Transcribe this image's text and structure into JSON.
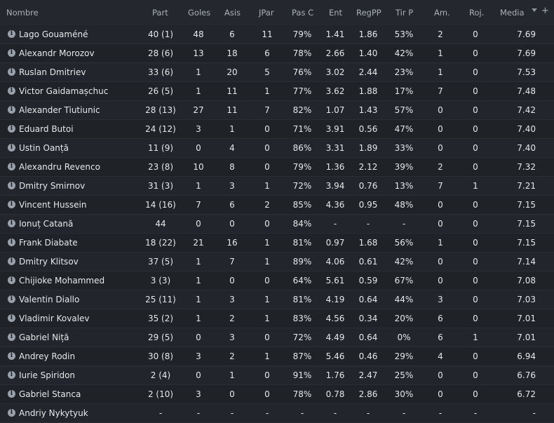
{
  "header": {
    "name": "Nombre",
    "part": "Part",
    "goles": "Goles",
    "asis": "Asis",
    "jpar": "JPar",
    "pasc": "Pas C",
    "ent": "Ent",
    "regpp": "RegPP",
    "tirp": "Tir P",
    "am": "Am.",
    "roj": "Roj.",
    "media": "Media",
    "add": "+"
  },
  "rows": [
    {
      "name": "Lago Gouaméné",
      "part": "40 (1)",
      "goles": "48",
      "asis": "6",
      "jpar": "11",
      "pasc": "79%",
      "ent": "1.41",
      "regpp": "1.86",
      "tirp": "53%",
      "am": "2",
      "roj": "0",
      "media": "7.69"
    },
    {
      "name": "Alexandr Morozov",
      "part": "28 (6)",
      "goles": "13",
      "asis": "18",
      "jpar": "6",
      "pasc": "78%",
      "ent": "2.66",
      "regpp": "1.40",
      "tirp": "42%",
      "am": "1",
      "roj": "0",
      "media": "7.69"
    },
    {
      "name": "Ruslan Dmitriev",
      "part": "33 (6)",
      "goles": "1",
      "asis": "20",
      "jpar": "5",
      "pasc": "76%",
      "ent": "3.02",
      "regpp": "2.44",
      "tirp": "23%",
      "am": "1",
      "roj": "0",
      "media": "7.53"
    },
    {
      "name": "Victor Gaidamașchuc",
      "part": "26 (5)",
      "goles": "1",
      "asis": "11",
      "jpar": "1",
      "pasc": "77%",
      "ent": "3.62",
      "regpp": "1.88",
      "tirp": "17%",
      "am": "7",
      "roj": "0",
      "media": "7.48"
    },
    {
      "name": "Alexander Tiutiunic",
      "part": "28 (13)",
      "goles": "27",
      "asis": "11",
      "jpar": "7",
      "pasc": "82%",
      "ent": "1.07",
      "regpp": "1.43",
      "tirp": "57%",
      "am": "0",
      "roj": "0",
      "media": "7.42"
    },
    {
      "name": "Eduard Butoi",
      "part": "24 (12)",
      "goles": "3",
      "asis": "1",
      "jpar": "0",
      "pasc": "71%",
      "ent": "3.91",
      "regpp": "0.56",
      "tirp": "47%",
      "am": "0",
      "roj": "0",
      "media": "7.40"
    },
    {
      "name": "Ustin Oanță",
      "part": "11 (9)",
      "goles": "0",
      "asis": "4",
      "jpar": "0",
      "pasc": "86%",
      "ent": "3.31",
      "regpp": "1.89",
      "tirp": "33%",
      "am": "0",
      "roj": "0",
      "media": "7.40"
    },
    {
      "name": "Alexandru Revenco",
      "part": "23 (8)",
      "goles": "10",
      "asis": "8",
      "jpar": "0",
      "pasc": "79%",
      "ent": "1.36",
      "regpp": "2.12",
      "tirp": "39%",
      "am": "2",
      "roj": "0",
      "media": "7.32"
    },
    {
      "name": "Dmitry Smirnov",
      "part": "31 (3)",
      "goles": "1",
      "asis": "3",
      "jpar": "1",
      "pasc": "72%",
      "ent": "3.94",
      "regpp": "0.76",
      "tirp": "13%",
      "am": "7",
      "roj": "1",
      "media": "7.21"
    },
    {
      "name": "Vincent Hussein",
      "part": "14 (16)",
      "goles": "7",
      "asis": "6",
      "jpar": "2",
      "pasc": "85%",
      "ent": "4.36",
      "regpp": "0.95",
      "tirp": "48%",
      "am": "0",
      "roj": "0",
      "media": "7.15"
    },
    {
      "name": "Ionuț Catană",
      "part": "44",
      "goles": "0",
      "asis": "0",
      "jpar": "0",
      "pasc": "84%",
      "ent": "-",
      "regpp": "-",
      "tirp": "-",
      "am": "0",
      "roj": "0",
      "media": "7.15"
    },
    {
      "name": "Frank Diabate",
      "part": "18 (22)",
      "goles": "21",
      "asis": "16",
      "jpar": "1",
      "pasc": "81%",
      "ent": "0.97",
      "regpp": "1.68",
      "tirp": "56%",
      "am": "1",
      "roj": "0",
      "media": "7.15"
    },
    {
      "name": "Dmitry Klitsov",
      "part": "37 (5)",
      "goles": "1",
      "asis": "7",
      "jpar": "1",
      "pasc": "89%",
      "ent": "4.06",
      "regpp": "0.61",
      "tirp": "42%",
      "am": "0",
      "roj": "0",
      "media": "7.14"
    },
    {
      "name": "Chijioke Mohammed",
      "part": "3 (3)",
      "goles": "1",
      "asis": "0",
      "jpar": "0",
      "pasc": "64%",
      "ent": "5.61",
      "regpp": "0.59",
      "tirp": "67%",
      "am": "0",
      "roj": "0",
      "media": "7.08"
    },
    {
      "name": "Valentin Diallo",
      "part": "25 (11)",
      "goles": "1",
      "asis": "3",
      "jpar": "1",
      "pasc": "81%",
      "ent": "4.19",
      "regpp": "0.64",
      "tirp": "44%",
      "am": "3",
      "roj": "0",
      "media": "7.03"
    },
    {
      "name": "Vladimir Kovalev",
      "part": "35 (2)",
      "goles": "1",
      "asis": "2",
      "jpar": "1",
      "pasc": "83%",
      "ent": "4.56",
      "regpp": "0.34",
      "tirp": "20%",
      "am": "6",
      "roj": "0",
      "media": "7.01"
    },
    {
      "name": "Gabriel Niță",
      "part": "29 (5)",
      "goles": "0",
      "asis": "3",
      "jpar": "0",
      "pasc": "72%",
      "ent": "4.49",
      "regpp": "0.64",
      "tirp": "0%",
      "am": "6",
      "roj": "1",
      "media": "7.01"
    },
    {
      "name": "Andrey Rodin",
      "part": "30 (8)",
      "goles": "3",
      "asis": "2",
      "jpar": "1",
      "pasc": "87%",
      "ent": "5.46",
      "regpp": "0.46",
      "tirp": "29%",
      "am": "4",
      "roj": "0",
      "media": "6.94"
    },
    {
      "name": "Iurie Spiridon",
      "part": "2 (4)",
      "goles": "0",
      "asis": "1",
      "jpar": "0",
      "pasc": "91%",
      "ent": "1.76",
      "regpp": "2.47",
      "tirp": "25%",
      "am": "0",
      "roj": "0",
      "media": "6.76"
    },
    {
      "name": "Gabriel Stanca",
      "part": "2 (10)",
      "goles": "3",
      "asis": "0",
      "jpar": "0",
      "pasc": "78%",
      "ent": "0.78",
      "regpp": "2.86",
      "tirp": "30%",
      "am": "0",
      "roj": "0",
      "media": "6.72"
    },
    {
      "name": "Andriy Nykytyuk",
      "part": "-",
      "goles": "-",
      "asis": "-",
      "jpar": "-",
      "pasc": "-",
      "ent": "-",
      "regpp": "-",
      "tirp": "-",
      "am": "-",
      "roj": "-",
      "media": "-"
    }
  ]
}
